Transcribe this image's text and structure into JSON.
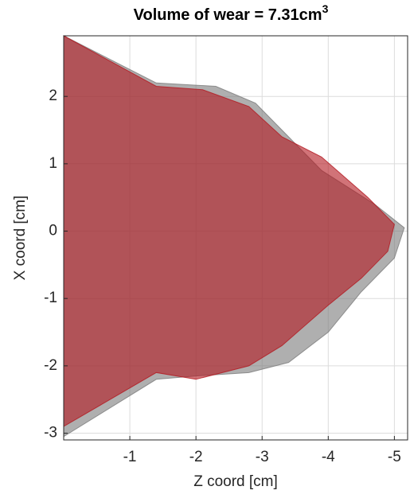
{
  "chart_data": {
    "type": "polygon",
    "title": "Volume of wear = 7.31cm",
    "title_superscript": "3",
    "xlabel": "Z coord [cm]",
    "ylabel": "X coord [cm]",
    "xlim": [
      0,
      -5.2
    ],
    "xticks": [
      -1,
      -2,
      -3,
      -4,
      -5
    ],
    "ylim": [
      -3.1,
      2.9
    ],
    "yticks": [
      -3,
      -2,
      -1,
      0,
      1,
      2
    ],
    "grid": true,
    "series": [
      {
        "color": "#7a7a7a",
        "x": [
          0,
          -1.4,
          -2.3,
          -2.9,
          -3.4,
          -3.9,
          -4.7,
          -5.15,
          -5.0,
          -4.5,
          -4.0,
          -3.4,
          -2.8,
          -2.0,
          -1.4,
          0
        ],
        "values": [
          2.9,
          2.2,
          2.15,
          1.9,
          1.4,
          0.9,
          0.4,
          0.05,
          -0.4,
          -0.9,
          -1.5,
          -1.95,
          -2.1,
          -2.15,
          -2.2,
          -3.05
        ]
      },
      {
        "color": "#b3161e",
        "x": [
          0,
          -1.4,
          -2.1,
          -2.8,
          -3.3,
          -3.9,
          -4.6,
          -5.0,
          -4.9,
          -4.5,
          -4.0,
          -3.3,
          -2.8,
          -2.0,
          -1.4,
          0
        ],
        "values": [
          2.9,
          2.15,
          2.1,
          1.85,
          1.4,
          1.1,
          0.5,
          0.1,
          -0.3,
          -0.7,
          -1.1,
          -1.7,
          -2.0,
          -2.2,
          -2.1,
          -2.9
        ]
      }
    ]
  }
}
